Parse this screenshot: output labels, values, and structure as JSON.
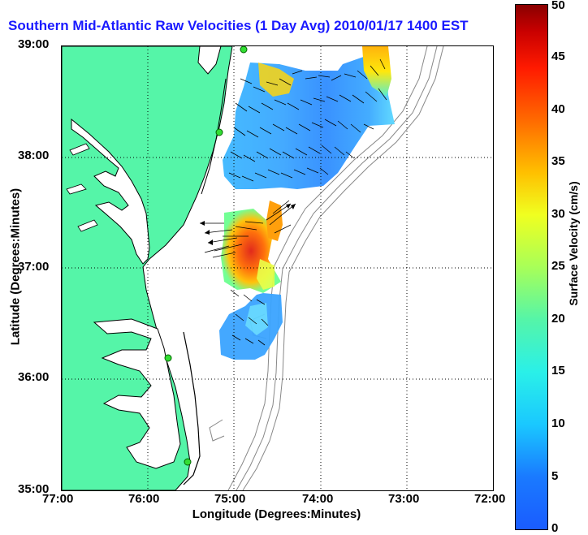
{
  "title": "Southern Mid-Atlantic Raw Velocities (1 Day Avg) 2010/01/17 1400 EST",
  "axes": {
    "xlabel": "Longitude (Degrees:Minutes)",
    "ylabel": "Latitude (Degrees:Minutes)",
    "xticks": [
      "77:00",
      "76:00",
      "75:00",
      "74:00",
      "73:00",
      "72:00"
    ],
    "yticks": [
      "39:00",
      "38:00",
      "37:00",
      "36:00",
      "35:00"
    ],
    "xlim": [
      -77,
      -72
    ],
    "ylim": [
      35,
      39
    ]
  },
  "colorbar": {
    "label": "Surface Velocity (cm/s)",
    "ticks": [
      "0",
      "5",
      "10",
      "15",
      "20",
      "25",
      "30",
      "35",
      "40",
      "45",
      "50"
    ],
    "range": [
      0,
      50
    ],
    "colormap": "jet"
  },
  "colors": {
    "land": "#55f5a8",
    "coast_line": "#000000",
    "bathymetry": "#888888",
    "stations": "#33dd33",
    "title": "#1a1aff"
  }
}
